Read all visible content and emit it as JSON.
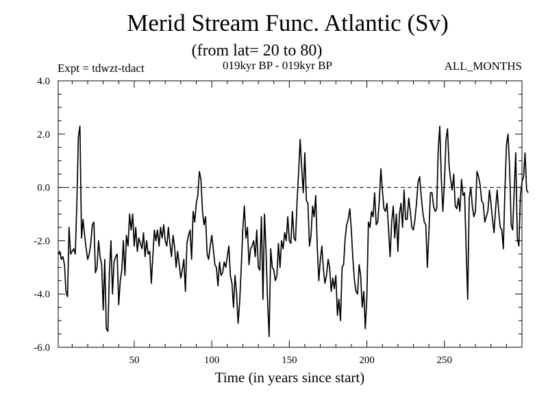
{
  "chart_data": {
    "type": "line",
    "title": "Merid Stream Func. Atlantic (Sv)",
    "subtitle": "(from lat= 20 to 80)",
    "experiment_label": "Expt = tdwzt-tdact",
    "period_label": "019kyr BP - 019kyr BP",
    "months_label": "ALL_MONTHS",
    "xlabel": "Time (in years since start)",
    "ylabel": "",
    "xlim": [
      1,
      300
    ],
    "ylim": [
      -6.0,
      4.0
    ],
    "x_ticks": [
      50,
      100,
      150,
      200,
      250
    ],
    "x_tick_labels": [
      "50",
      "100",
      "150",
      "200",
      "250"
    ],
    "y_ticks": [
      -6.0,
      -4.0,
      -2.0,
      0.0,
      2.0,
      4.0
    ],
    "y_tick_labels": [
      "-6.0",
      "-4.0",
      "-2.0",
      "0.0",
      "2.0",
      "4.0"
    ],
    "reference_line": {
      "y": 0.0,
      "style": "dashed"
    },
    "grid": false,
    "series": [
      {
        "x_start": 1,
        "x_step": 1,
        "values": [
          -2.5,
          -2.4,
          -2.7,
          -2.6,
          -2.9,
          -3.9,
          -4.1,
          -1.5,
          -2.5,
          -2.4,
          -2.3,
          -2.5,
          -0.6,
          1.9,
          2.3,
          -1.9,
          -1.2,
          -1.8,
          -2.3,
          -2.7,
          -2.5,
          -2.1,
          -1.4,
          -1.3,
          -3.2,
          -3.0,
          -2.0,
          -2.6,
          -2.9,
          -4.6,
          -2.7,
          -5.3,
          -5.4,
          -3.2,
          -2.0,
          -4.0,
          -2.8,
          -2.6,
          -2.5,
          -4.4,
          -3.5,
          -3.1,
          -2.0,
          -3.3,
          -1.8,
          -2.2,
          -1.0,
          -1.6,
          -1.0,
          -2.2,
          -1.5,
          -2.4,
          -1.9,
          -2.1,
          -2.3,
          -1.7,
          -2.6,
          -2.0,
          -2.5,
          -2.4,
          -3.6,
          -2.6,
          -1.6,
          -2.0,
          -1.6,
          -2.2,
          -1.5,
          -1.9,
          -1.4,
          -2.0,
          -2.2,
          -1.5,
          -2.1,
          -2.6,
          -1.8,
          -2.2,
          -3.0,
          -2.4,
          -2.9,
          -3.4,
          -3.1,
          -2.7,
          -3.9,
          -2.1,
          -1.8,
          -1.6,
          -2.7,
          -0.9,
          -1.3,
          -0.6,
          -0.3,
          0.6,
          0.3,
          -0.9,
          -1.4,
          -1.1,
          -2.5,
          -2.7,
          -2.2,
          -1.8,
          -2.3,
          -2.9,
          -3.0,
          -3.7,
          -2.8,
          -3.3,
          -3.2,
          -2.8,
          -3.0,
          -2.6,
          -2.2,
          -3.3,
          -3.6,
          -4.5,
          -3.3,
          -4.0,
          -5.1,
          -4.3,
          -3.0,
          -1.6,
          -0.7,
          -1.9,
          -1.5,
          -2.9,
          -2.3,
          -2.2,
          -2.0,
          -2.6,
          -1.6,
          -3.0,
          -3.1,
          -1.1,
          -4.2,
          -1.0,
          -2.4,
          -4.3,
          -5.6,
          -2.3,
          -3.0,
          -3.1,
          -3.5,
          -3.3,
          -2.1,
          -3.0,
          -2.0,
          -2.3,
          -1.7,
          -2.0,
          -1.1,
          -2.0,
          -2.1,
          -0.9,
          -1.9,
          -2.0,
          -0.5,
          0.6,
          1.8,
          0.7,
          -0.2,
          1.3,
          -0.5,
          -0.6,
          -2.2,
          -1.8,
          -0.7,
          -1.1,
          -0.3,
          -2.2,
          -3.5,
          -2.7,
          -2.2,
          -3.1,
          -3.6,
          -3.3,
          -2.7,
          -3.0,
          -3.9,
          -3.4,
          -3.8,
          -3.3,
          -4.8,
          -4.2,
          -5.0,
          -3.0,
          -2.9,
          -1.9,
          -1.4,
          -1.2,
          -0.8,
          -1.6,
          -2.7,
          -3.5,
          -3.9,
          -4.0,
          -2.9,
          -3.3,
          -4.5,
          -3.9,
          -5.3,
          -4.1,
          -1.3,
          -1.5,
          -0.9,
          -1.1,
          -0.2,
          -1.4,
          -1.3,
          -0.5,
          0.7,
          -0.1,
          -0.8,
          -0.9,
          -0.6,
          -1.6,
          -2.6,
          -1.3,
          -0.7,
          -1.9,
          -1.0,
          -2.4,
          -1.0,
          -0.6,
          -1.5,
          -0.1,
          -1.2,
          -1.2,
          -0.4,
          -0.9,
          -1.5,
          -1.6,
          -1.2,
          -0.6,
          0.2,
          0.4,
          -0.3,
          -0.9,
          -1.3,
          -1.4,
          -3.0,
          -1.7,
          -0.2,
          -0.2,
          -0.7,
          -0.9,
          -0.8,
          1.4,
          2.3,
          0.3,
          -0.9,
          0.2,
          1.8,
          2.2,
          0.8,
          0.3,
          -0.1,
          0.5,
          -0.7,
          -0.8,
          -0.4,
          -0.9,
          0.3,
          -0.3,
          -0.2,
          -2.3,
          -4.2,
          -0.4,
          0.0,
          -0.7,
          -1.1,
          -0.9,
          0.6,
          0.4,
          0.1,
          -0.5,
          -0.6,
          -1.3,
          -1.1,
          -0.9,
          -0.1,
          -0.6,
          -1.2,
          -1.7,
          -0.8,
          -0.1,
          -0.9,
          -1.5,
          -1.6,
          -2.3,
          -0.1,
          1.6,
          2.0,
          0.8,
          -1.4,
          -1.6,
          -0.1,
          1.3,
          -1.9,
          -2.2,
          -0.3,
          0.2,
          0.4,
          1.3,
          -0.1,
          -0.2
        ]
      }
    ]
  }
}
